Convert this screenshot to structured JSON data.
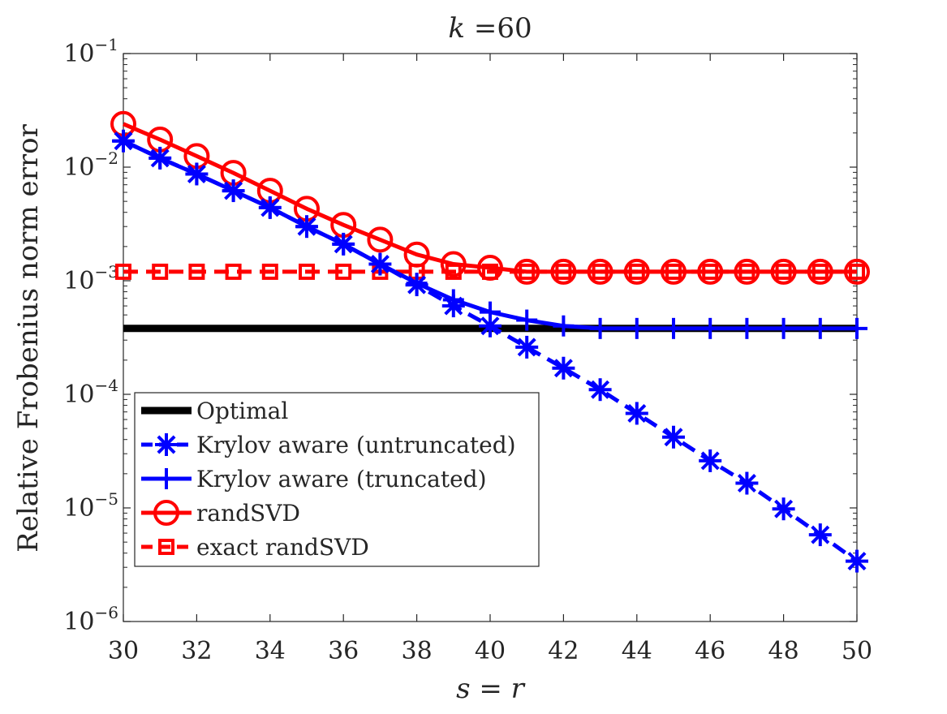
{
  "chart_data": {
    "type": "line",
    "title_var": "k",
    "title_eq": " =",
    "title_val": "60",
    "xlabel_s": "s",
    "xlabel_eq": " = ",
    "xlabel_r": "r",
    "ylabel": "Relative Frobenius norm error",
    "xlim": [
      30,
      50
    ],
    "ylim": [
      1e-06,
      0.1
    ],
    "yscale": "log",
    "x_ticks": [
      30,
      32,
      34,
      36,
      38,
      40,
      42,
      44,
      46,
      48,
      50
    ],
    "x_tick_labels": [
      "30",
      "32",
      "34",
      "36",
      "38",
      "40",
      "42",
      "44",
      "46",
      "48",
      "50"
    ],
    "y_ticks": [
      {
        "value": 0.1,
        "base": "10",
        "exp": "−1"
      },
      {
        "value": 0.01,
        "base": "10",
        "exp": "−2"
      },
      {
        "value": 0.001,
        "base": "10",
        "exp": "−3"
      },
      {
        "value": 0.0001,
        "base": "10",
        "exp": "−4"
      },
      {
        "value": 1e-05,
        "base": "10",
        "exp": "−5"
      },
      {
        "value": 1e-06,
        "base": "10",
        "exp": "−6"
      }
    ],
    "legend_position": "bottom-left",
    "series": [
      {
        "name": "Optimal",
        "color": "#000000",
        "marker": "none",
        "style": "solid-thick",
        "x": [
          30,
          50
        ],
        "values": [
          0.00038,
          0.00038
        ]
      },
      {
        "name": "Krylov aware (untruncated)",
        "color": "#0000ff",
        "marker": "asterisk",
        "style": "dashed",
        "x": [
          30,
          31,
          32,
          33,
          34,
          35,
          36,
          37,
          38,
          39,
          40,
          41,
          42,
          43,
          44,
          45,
          46,
          47,
          48,
          49,
          50
        ],
        "values": [
          0.017,
          0.012,
          0.0087,
          0.0062,
          0.0044,
          0.003,
          0.0021,
          0.0014,
          0.00092,
          0.0006,
          0.0004,
          0.00026,
          0.00017,
          0.00011,
          6.8e-05,
          4.2e-05,
          2.6e-05,
          1.65e-05,
          9.8e-06,
          5.8e-06,
          3.4e-06
        ]
      },
      {
        "name": "Krylov aware (truncated)",
        "color": "#0000ff",
        "marker": "plus",
        "style": "solid",
        "x": [
          30,
          31,
          32,
          33,
          34,
          35,
          36,
          37,
          38,
          39,
          40,
          41,
          42,
          43,
          44,
          45,
          46,
          47,
          48,
          49,
          50
        ],
        "values": [
          0.017,
          0.012,
          0.0087,
          0.0062,
          0.0044,
          0.003,
          0.0021,
          0.0014,
          0.00095,
          0.00068,
          0.00053,
          0.00045,
          0.0004,
          0.00038,
          0.00038,
          0.00038,
          0.00038,
          0.00038,
          0.00038,
          0.00038,
          0.00038
        ]
      },
      {
        "name": "randSVD",
        "color": "#ff0000",
        "marker": "circle",
        "style": "solid",
        "x": [
          30,
          31,
          32,
          33,
          34,
          35,
          36,
          37,
          38,
          39,
          40,
          41,
          42,
          43,
          44,
          45,
          46,
          47,
          48,
          49,
          50
        ],
        "values": [
          0.024,
          0.0175,
          0.0125,
          0.0089,
          0.0062,
          0.0043,
          0.0031,
          0.0023,
          0.0017,
          0.0014,
          0.0013,
          0.0012,
          0.0012,
          0.0012,
          0.0012,
          0.0012,
          0.0012,
          0.0012,
          0.0012,
          0.0012,
          0.0012
        ]
      },
      {
        "name": "exact randSVD",
        "color": "#ff0000",
        "marker": "square",
        "style": "dashed",
        "x": [
          30,
          31,
          32,
          33,
          34,
          35,
          36,
          37,
          38,
          39,
          40,
          41,
          42,
          43,
          44,
          45,
          46,
          47,
          48,
          49,
          50
        ],
        "values": [
          0.0012,
          0.0012,
          0.0012,
          0.0012,
          0.0012,
          0.0012,
          0.0012,
          0.0012,
          0.0012,
          0.0012,
          0.0012,
          0.0012,
          0.0012,
          0.0012,
          0.0012,
          0.0012,
          0.0012,
          0.0012,
          0.0012,
          0.0012,
          0.0012
        ]
      }
    ]
  }
}
